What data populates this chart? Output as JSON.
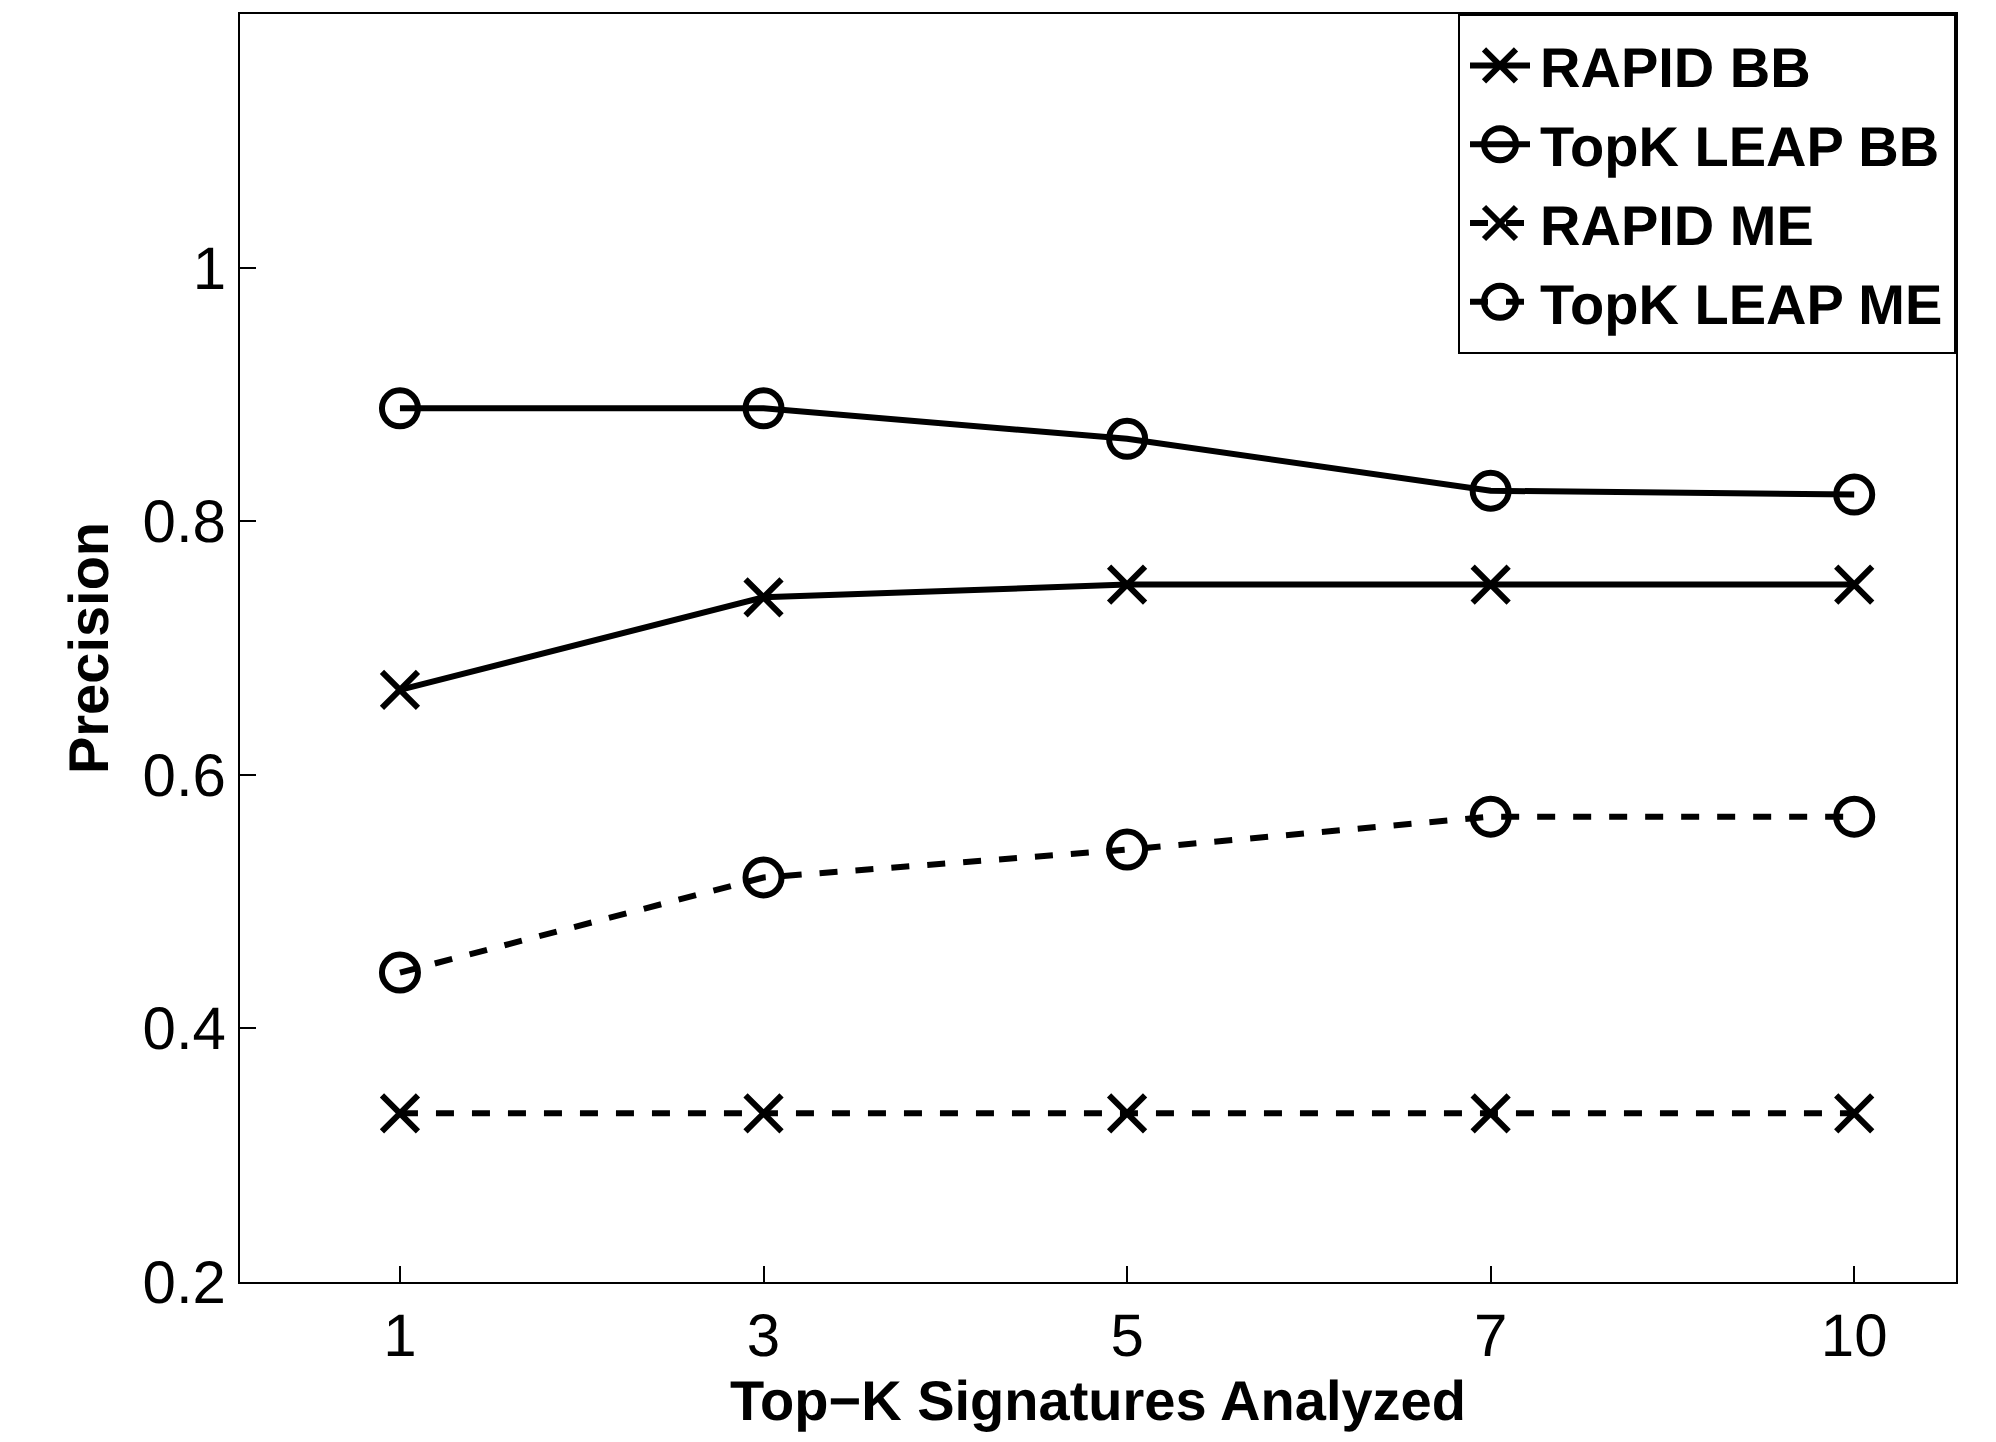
{
  "chart_data": {
    "type": "line",
    "xlabel": "Top−K Signatures Analyzed",
    "ylabel": "Precision",
    "categories": [
      "1",
      "3",
      "5",
      "7",
      "10"
    ],
    "series": [
      {
        "name": "RAPID BB",
        "color": "#000000",
        "marker": "cross",
        "line_style": "solid",
        "values": [
          0.667,
          0.74,
          0.75,
          0.75,
          0.75
        ]
      },
      {
        "name": "TopK LEAP BB",
        "color": "#000000",
        "marker": "circle",
        "line_style": "solid",
        "values": [
          0.889,
          0.889,
          0.865,
          0.824,
          0.821
        ]
      },
      {
        "name": "RAPID ME",
        "color": "#000000",
        "marker": "cross",
        "line_style": "dashed",
        "values": [
          0.333,
          0.333,
          0.333,
          0.333,
          0.333
        ]
      },
      {
        "name": "TopK LEAP ME",
        "color": "#000000",
        "marker": "circle",
        "line_style": "dashed",
        "values": [
          0.444,
          0.519,
          0.541,
          0.567,
          0.567
        ]
      }
    ],
    "ylim": [
      0.2,
      1.2
    ],
    "yticks": [
      0.2,
      0.4,
      0.6,
      0.8,
      1
    ],
    "grid": false,
    "legend": "top right"
  }
}
